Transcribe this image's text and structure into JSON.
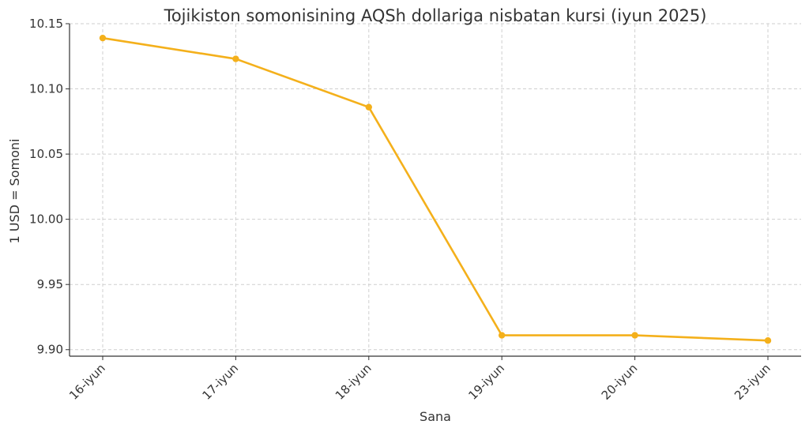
{
  "chart_data": {
    "type": "line",
    "title": "Tojikiston somonisining AQSh dollariga nisbatan kursi (iyun 2025)",
    "xlabel": "Sana",
    "ylabel": "1 USD = Somoni",
    "categories": [
      "16-iyun",
      "17-iyun",
      "18-iyun",
      "19-iyun",
      "20-iyun",
      "23-iyun"
    ],
    "series": [
      {
        "values": [
          10.139,
          10.123,
          10.086,
          9.911,
          9.911,
          9.907
        ],
        "color": "#f4b01b"
      }
    ],
    "ylim": [
      9.895,
      10.15
    ],
    "yticks": [
      9.9,
      9.95,
      10.0,
      10.05,
      10.1,
      10.15
    ],
    "ytick_labels": [
      "9.90",
      "9.95",
      "10.00",
      "10.05",
      "10.10",
      "10.15"
    ],
    "grid": true,
    "legend": "none"
  }
}
